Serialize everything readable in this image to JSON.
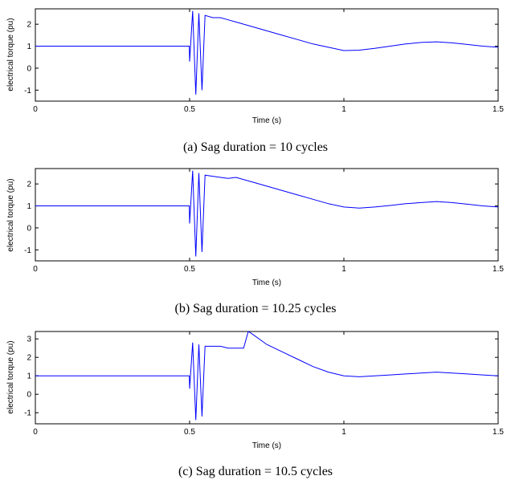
{
  "chart_data": [
    {
      "type": "line",
      "caption": "(a) Sag duration = 10 cycles",
      "xlabel": "Time (s)",
      "ylabel": "electrical torque (pu)",
      "xlim": [
        0,
        1.5
      ],
      "ylim": [
        -1.5,
        2.7
      ],
      "xticks": [
        0,
        0.5,
        1,
        1.5
      ],
      "xtick_labels": [
        "0",
        "0.5",
        "1",
        "1.5"
      ],
      "yticks": [
        -1,
        0,
        1,
        2
      ],
      "ytick_labels": [
        "-1",
        "0",
        "1",
        "2"
      ],
      "grid": false,
      "line_color": "#0000ff",
      "series": [
        {
          "x": [
            0,
            0.15,
            0.3,
            0.45,
            0.499,
            0.5,
            0.51,
            0.52,
            0.53,
            0.54,
            0.55,
            0.575,
            0.6,
            0.625,
            0.65,
            0.7,
            0.75,
            0.8,
            0.85,
            0.9,
            0.95,
            1.0,
            1.05,
            1.1,
            1.15,
            1.2,
            1.25,
            1.3,
            1.35,
            1.4,
            1.45,
            1.5
          ],
          "y": [
            1.0,
            1.0,
            1.0,
            1.0,
            1.0,
            0.3,
            2.6,
            -1.2,
            2.5,
            -1.0,
            2.4,
            2.3,
            2.3,
            2.2,
            2.1,
            1.9,
            1.7,
            1.5,
            1.3,
            1.1,
            0.95,
            0.8,
            0.82,
            0.9,
            1.0,
            1.1,
            1.17,
            1.2,
            1.15,
            1.08,
            1.0,
            0.95
          ]
        }
      ]
    },
    {
      "type": "line",
      "caption": "(b) Sag duration = 10.25 cycles",
      "xlabel": "Time (s)",
      "ylabel": "electrical torque (pu)",
      "xlim": [
        0,
        1.5
      ],
      "ylim": [
        -1.5,
        2.7
      ],
      "xticks": [
        0,
        0.5,
        1,
        1.5
      ],
      "xtick_labels": [
        "0",
        "0.5",
        "1",
        "1.5"
      ],
      "yticks": [
        -1,
        0,
        1,
        2
      ],
      "ytick_labels": [
        "-1",
        "0",
        "1",
        "2"
      ],
      "grid": false,
      "line_color": "#0000ff",
      "series": [
        {
          "x": [
            0,
            0.15,
            0.3,
            0.45,
            0.499,
            0.5,
            0.51,
            0.52,
            0.53,
            0.54,
            0.55,
            0.575,
            0.6,
            0.625,
            0.65,
            0.7,
            0.75,
            0.8,
            0.85,
            0.9,
            0.95,
            1.0,
            1.05,
            1.1,
            1.15,
            1.2,
            1.25,
            1.3,
            1.35,
            1.4,
            1.45,
            1.5
          ],
          "y": [
            1.0,
            1.0,
            1.0,
            1.0,
            1.0,
            0.2,
            2.6,
            -1.3,
            2.5,
            -1.1,
            2.4,
            2.35,
            2.3,
            2.25,
            2.3,
            2.1,
            1.9,
            1.7,
            1.5,
            1.3,
            1.1,
            0.95,
            0.9,
            0.95,
            1.02,
            1.1,
            1.15,
            1.2,
            1.15,
            1.08,
            1.0,
            0.95
          ]
        }
      ]
    },
    {
      "type": "line",
      "caption": "(c) Sag duration = 10.5 cycles",
      "xlabel": "Time (s)",
      "ylabel": "electrical torque (pu)",
      "xlim": [
        0,
        1.5
      ],
      "ylim": [
        -1.6,
        3.4
      ],
      "xticks": [
        0,
        0.5,
        1,
        1.5
      ],
      "xtick_labels": [
        "0",
        "0.5",
        "1",
        "1.5"
      ],
      "yticks": [
        -1,
        0,
        1,
        2,
        3
      ],
      "ytick_labels": [
        "-1",
        "0",
        "1",
        "2",
        "3"
      ],
      "grid": false,
      "line_color": "#0000ff",
      "series": [
        {
          "x": [
            0,
            0.15,
            0.3,
            0.45,
            0.499,
            0.5,
            0.51,
            0.52,
            0.53,
            0.54,
            0.55,
            0.575,
            0.6,
            0.625,
            0.65,
            0.675,
            0.69,
            0.7,
            0.75,
            0.8,
            0.85,
            0.9,
            0.95,
            1.0,
            1.05,
            1.1,
            1.15,
            1.2,
            1.25,
            1.3,
            1.35,
            1.4,
            1.45,
            1.5
          ],
          "y": [
            1.0,
            1.0,
            1.0,
            1.0,
            1.0,
            0.3,
            2.8,
            -1.4,
            2.7,
            -1.2,
            2.6,
            2.6,
            2.6,
            2.5,
            2.5,
            2.5,
            3.4,
            3.3,
            2.7,
            2.3,
            1.9,
            1.5,
            1.2,
            1.0,
            0.95,
            1.0,
            1.05,
            1.1,
            1.15,
            1.2,
            1.15,
            1.1,
            1.05,
            1.0
          ]
        }
      ]
    }
  ]
}
